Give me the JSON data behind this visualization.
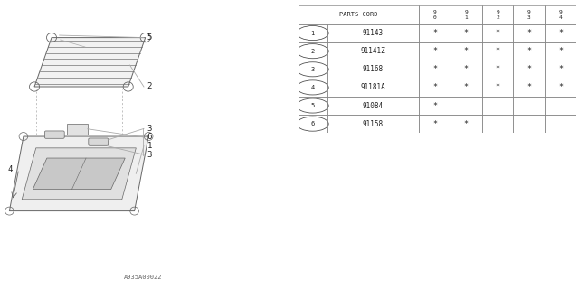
{
  "bg_color": "#ffffff",
  "table": {
    "header": [
      "PARTS CORD",
      "9\n0",
      "9\n1",
      "9\n2",
      "9\n3",
      "9\n4"
    ],
    "rows": [
      {
        "num": "1",
        "part": "91143",
        "cols": [
          "*",
          "*",
          "*",
          "*",
          "*"
        ]
      },
      {
        "num": "2",
        "part": "91141Z",
        "cols": [
          "*",
          "*",
          "*",
          "*",
          "*"
        ]
      },
      {
        "num": "3",
        "part": "91168",
        "cols": [
          "*",
          "*",
          "*",
          "*",
          "*"
        ]
      },
      {
        "num": "4",
        "part": "91181A",
        "cols": [
          "*",
          "*",
          "*",
          "*",
          "*"
        ]
      },
      {
        "num": "5",
        "part": "91084",
        "cols": [
          "*",
          "",
          "",
          "",
          ""
        ]
      },
      {
        "num": "6",
        "part": "91158",
        "cols": [
          "*",
          "*",
          "",
          "",
          ""
        ]
      }
    ]
  },
  "footer_text": "A935A00022",
  "line_color": "#aaaaaa",
  "dark_line_color": "#666666"
}
